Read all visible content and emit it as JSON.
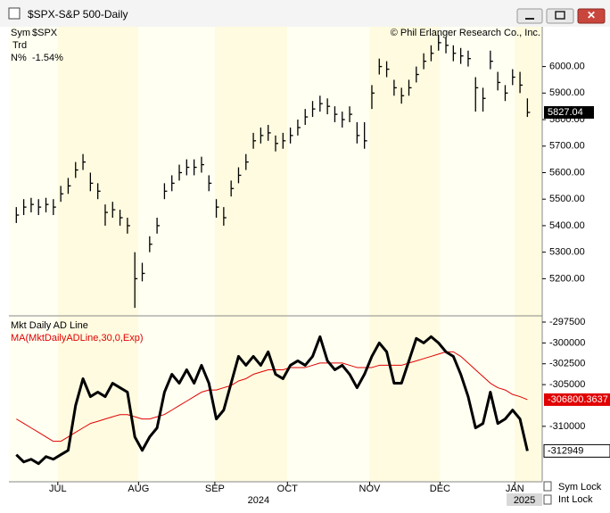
{
  "window": {
    "title": "$SPX-S&P 500-Daily"
  },
  "info": {
    "sym_label": "Sym",
    "sym": "$SPX",
    "trd_label": "Trd",
    "n_label": "N%",
    "n_value": "-1.54%"
  },
  "copyright": "© Phil Erlanger Research Co., Inc.",
  "controls": [
    "Sym Lock",
    "Int Lock"
  ],
  "chart_data": [
    {
      "type": "ohlc",
      "color": "#000000",
      "xlim": [
        -1,
        71
      ],
      "ylim": [
        5060,
        6150
      ],
      "yticks": [
        {
          "value": 5200,
          "label": "5200.00"
        },
        {
          "value": 5300,
          "label": "5300.00"
        },
        {
          "value": 5400,
          "label": "5400.00"
        },
        {
          "value": 5500,
          "label": "5500.00"
        },
        {
          "value": 5600,
          "label": "5600.00"
        },
        {
          "value": 5700,
          "label": "5700.00"
        },
        {
          "value": 5800,
          "label": "5800.00"
        },
        {
          "value": 5900,
          "label": "5900.00"
        },
        {
          "value": 6000,
          "label": "6000.00"
        }
      ],
      "high": [
        5470,
        5500,
        5505,
        5500,
        5505,
        5500,
        5550,
        5580,
        5640,
        5670,
        5600,
        5560,
        5480,
        5490,
        5460,
        5430,
        5300,
        5260,
        5360,
        5430,
        5560,
        5590,
        5630,
        5650,
        5650,
        5660,
        5590,
        5500,
        5470,
        5570,
        5620,
        5670,
        5750,
        5770,
        5780,
        5740,
        5750,
        5770,
        5800,
        5840,
        5870,
        5890,
        5880,
        5850,
        5830,
        5850,
        5790,
        5790,
        5930,
        6030,
        6020,
        5950,
        5920,
        5950,
        6000,
        6050,
        6080,
        6120,
        6110,
        6080,
        6070,
        6060,
        5960,
        5920,
        6060,
        5980,
        5930,
        5990,
        5980,
        5880
      ],
      "low": [
        5410,
        5440,
        5450,
        5440,
        5450,
        5440,
        5490,
        5520,
        5580,
        5610,
        5530,
        5500,
        5400,
        5430,
        5400,
        5370,
        5090,
        5190,
        5300,
        5370,
        5500,
        5530,
        5570,
        5590,
        5590,
        5600,
        5530,
        5430,
        5400,
        5510,
        5560,
        5610,
        5690,
        5710,
        5720,
        5680,
        5690,
        5710,
        5740,
        5780,
        5810,
        5830,
        5820,
        5790,
        5770,
        5790,
        5710,
        5690,
        5840,
        5970,
        5960,
        5890,
        5860,
        5890,
        5940,
        5990,
        6020,
        6060,
        6050,
        6020,
        6010,
        6000,
        5830,
        5830,
        5990,
        5910,
        5870,
        5930,
        5900,
        5810
      ],
      "close": [
        5440,
        5470,
        5480,
        5470,
        5480,
        5470,
        5520,
        5550,
        5610,
        5640,
        5560,
        5530,
        5450,
        5460,
        5430,
        5400,
        5200,
        5220,
        5330,
        5400,
        5530,
        5560,
        5600,
        5620,
        5620,
        5630,
        5560,
        5470,
        5430,
        5540,
        5590,
        5640,
        5720,
        5740,
        5750,
        5710,
        5720,
        5740,
        5770,
        5810,
        5840,
        5860,
        5850,
        5820,
        5800,
        5820,
        5740,
        5720,
        5900,
        6000,
        5990,
        5920,
        5890,
        5920,
        5970,
        6020,
        6050,
        6090,
        6080,
        6050,
        6040,
        6030,
        5920,
        5880,
        6020,
        5940,
        5900,
        5960,
        5930,
        5827.04
      ]
    },
    {
      "type": "line",
      "xlim": [
        -1,
        71
      ],
      "ylim": [
        -316650,
        -296750
      ],
      "yticks": [
        -297500,
        -300000,
        -302500,
        -305000,
        -310000
      ],
      "xticks": [
        {
          "value": 5.6,
          "label": "JUL"
        },
        {
          "value": 16.5,
          "label": "AUG"
        },
        {
          "value": 26.8,
          "label": "SEP"
        },
        {
          "value": 36.6,
          "label": "OCT"
        },
        {
          "value": 47.7,
          "label": "NOV"
        },
        {
          "value": 57.2,
          "label": "DEC"
        },
        {
          "value": 67.3,
          "label": "JAN"
        }
      ],
      "year_labels": [
        {
          "value": 32.7,
          "label": "2024"
        },
        {
          "value": 68.6,
          "label": "2025"
        }
      ],
      "series": [
        {
          "name": "Mkt Daily AD Line",
          "color": "#000000",
          "values": [
            -313410,
            -314270,
            -313950,
            -314480,
            -313630,
            -313950,
            -313410,
            -312880,
            -307510,
            -304290,
            -306440,
            -305900,
            -306440,
            -304830,
            -305370,
            -305900,
            -311270,
            -312880,
            -311270,
            -310190,
            -305900,
            -303760,
            -304830,
            -303220,
            -304830,
            -302680,
            -304830,
            -309120,
            -308050,
            -304830,
            -301610,
            -302680,
            -301610,
            -302680,
            -301070,
            -303760,
            -304290,
            -302680,
            -302150,
            -302680,
            -301610,
            -299250,
            -302150,
            -303220,
            -302680,
            -303760,
            -305370,
            -303760,
            -301610,
            -300000,
            -301070,
            -304830,
            -304830,
            -302150,
            -299460,
            -300000,
            -299250,
            -300000,
            -301070,
            -301610,
            -303760,
            -306440,
            -310190,
            -309660,
            -305900,
            -309660,
            -309120,
            -308050,
            -309120,
            -312949
          ]
        },
        {
          "name": "MA(MktDailyADLine,30,0,Exp)",
          "color": "#e00000",
          "values": [
            -309120,
            -309650,
            -310190,
            -310720,
            -311270,
            -311800,
            -311800,
            -311270,
            -310720,
            -310190,
            -309660,
            -309400,
            -309120,
            -308850,
            -308600,
            -308600,
            -308850,
            -309120,
            -309120,
            -308850,
            -308580,
            -308050,
            -307510,
            -306980,
            -306440,
            -305900,
            -305640,
            -305640,
            -305370,
            -305100,
            -304560,
            -304290,
            -303760,
            -303490,
            -303220,
            -303220,
            -303220,
            -302950,
            -302950,
            -302950,
            -302680,
            -302410,
            -302410,
            -302410,
            -302410,
            -302680,
            -302950,
            -302950,
            -302950,
            -302680,
            -302680,
            -302680,
            -302680,
            -302410,
            -302150,
            -301880,
            -301610,
            -301340,
            -301070,
            -301070,
            -301610,
            -302410,
            -303220,
            -304030,
            -304830,
            -305370,
            -305640,
            -306180,
            -306440,
            -306800.3637
          ]
        }
      ]
    }
  ]
}
